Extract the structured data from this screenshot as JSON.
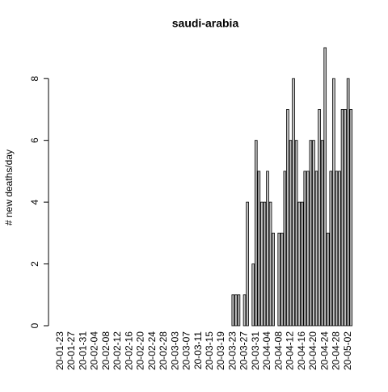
{
  "chart_data": {
    "type": "bar",
    "title": "saudi-arabia",
    "y_label": "# new deaths/day",
    "categories": [
      "20-01-23",
      null,
      null,
      null,
      "20-01-27",
      null,
      null,
      null,
      "20-01-31",
      null,
      null,
      null,
      "20-02-04",
      null,
      null,
      null,
      "20-02-08",
      null,
      null,
      null,
      "20-02-12",
      null,
      null,
      null,
      "20-02-16",
      null,
      null,
      null,
      "20-02-20",
      null,
      null,
      null,
      "20-02-24",
      null,
      null,
      null,
      "20-02-28",
      null,
      null,
      null,
      "20-03-03",
      null,
      null,
      null,
      "20-03-07",
      null,
      null,
      null,
      "20-03-11",
      null,
      null,
      null,
      "20-03-15",
      null,
      null,
      null,
      "20-03-19",
      null,
      null,
      null,
      "20-03-23",
      null,
      null,
      null,
      "20-03-27",
      null,
      null,
      null,
      "20-03-31",
      null,
      null,
      null,
      "20-04-04",
      null,
      null,
      null,
      "20-04-08",
      null,
      null,
      null,
      "20-04-12",
      null,
      null,
      null,
      "20-04-16",
      null,
      null,
      null,
      "20-04-20",
      null,
      null,
      null,
      "20-04-24",
      null,
      null,
      null,
      "20-04-28",
      null,
      null,
      null,
      "20-05-02",
      null
    ],
    "values": [
      0,
      0,
      0,
      0,
      0,
      0,
      0,
      0,
      0,
      0,
      0,
      0,
      0,
      0,
      0,
      0,
      0,
      0,
      0,
      0,
      0,
      0,
      0,
      0,
      0,
      0,
      0,
      0,
      0,
      0,
      0,
      0,
      0,
      0,
      0,
      0,
      0,
      0,
      0,
      0,
      0,
      0,
      0,
      0,
      0,
      0,
      0,
      0,
      0,
      0,
      0,
      0,
      0,
      0,
      0,
      0,
      0,
      0,
      0,
      0,
      1,
      1,
      1,
      0,
      1,
      4,
      0,
      2,
      6,
      5,
      4,
      4,
      5,
      4,
      3,
      0,
      3,
      3,
      5,
      7,
      6,
      8,
      6,
      4,
      4,
      5,
      5,
      6,
      6,
      5,
      7,
      6,
      9,
      3,
      5,
      8,
      5,
      5,
      7,
      7,
      8,
      7
    ],
    "color": "#bebebe",
    "ylim": [
      0,
      9
    ],
    "yticks": [
      0,
      2,
      4,
      6,
      8
    ]
  }
}
